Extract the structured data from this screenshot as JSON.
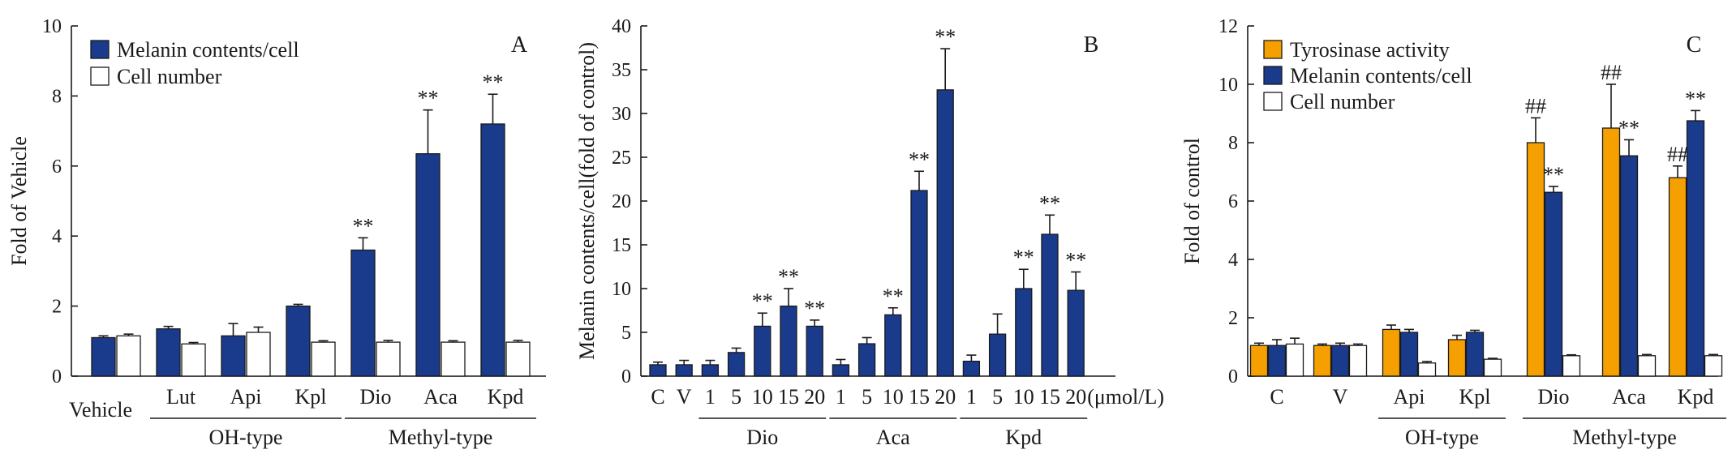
{
  "colors": {
    "melanin": "#1a3a8c",
    "cell": "#ffffff",
    "tyrosinase": "#f5a000",
    "ink": "#1a1a1a"
  },
  "chart_data": [
    {
      "type": "bar",
      "panel": "A",
      "ylabel": "Fold of  Vehicle",
      "ylim": [
        0,
        10
      ],
      "yticks": [
        0,
        2,
        4,
        6,
        8,
        10
      ],
      "categories": [
        "Vehicle",
        "Lut",
        "Api",
        "Kpl",
        "Dio",
        "Aca",
        "Kpd"
      ],
      "groups": [
        {
          "label": "OH-type",
          "categories": [
            "Lut",
            "Api",
            "Kpl"
          ]
        },
        {
          "label": "Methyl-type",
          "categories": [
            "Dio",
            "Aca",
            "Kpd"
          ]
        }
      ],
      "series": [
        {
          "name": "Melanin contents/cell",
          "color_key": "melanin",
          "values": [
            1.1,
            1.35,
            1.15,
            2.0,
            3.6,
            6.35,
            7.2
          ],
          "errors": [
            0.05,
            0.07,
            0.35,
            0.05,
            0.35,
            1.25,
            0.85
          ],
          "sig": [
            "",
            "",
            "",
            "",
            "**",
            "**",
            "**"
          ]
        },
        {
          "name": "Cell number",
          "color_key": "cell",
          "values": [
            1.15,
            0.92,
            1.25,
            0.97,
            0.97,
            0.97,
            0.97
          ],
          "errors": [
            0.05,
            0.04,
            0.15,
            0.04,
            0.05,
            0.04,
            0.05
          ],
          "sig": [
            "",
            "",
            "",
            "",
            "",
            "",
            ""
          ]
        }
      ]
    },
    {
      "type": "bar",
      "panel": "B",
      "ylabel": "Melanin contents/cell(fold of control)",
      "unit_label": "(μmol/L)",
      "ylim": [
        0,
        40
      ],
      "yticks": [
        0,
        5,
        10,
        15,
        20,
        25,
        30,
        35,
        40
      ],
      "categories": [
        "C",
        "V",
        "1",
        "5",
        "10",
        "15",
        "20",
        "1",
        "5",
        "10",
        "15",
        "20",
        "1",
        "5",
        "10",
        "15",
        "20"
      ],
      "groups": [
        {
          "label": "Dio",
          "start": 2,
          "end": 6
        },
        {
          "label": "Aca",
          "start": 7,
          "end": 11
        },
        {
          "label": "Kpd",
          "start": 12,
          "end": 16
        }
      ],
      "series": [
        {
          "name": "Melanin contents/cell",
          "color_key": "melanin",
          "values": [
            1.3,
            1.3,
            1.3,
            2.7,
            5.7,
            8.0,
            5.7,
            1.3,
            3.7,
            7.0,
            21.2,
            32.7,
            1.7,
            4.8,
            10.0,
            16.2,
            9.8
          ],
          "errors": [
            0.3,
            0.5,
            0.5,
            0.5,
            1.5,
            2.0,
            0.7,
            0.6,
            0.7,
            0.8,
            2.2,
            4.7,
            0.7,
            2.3,
            2.2,
            2.2,
            2.1
          ],
          "sig": [
            "",
            "",
            "",
            "",
            "**",
            "**",
            "**",
            "",
            "",
            "**",
            "**",
            "**",
            "",
            "",
            "**",
            "**",
            "**"
          ]
        }
      ]
    },
    {
      "type": "bar",
      "panel": "C",
      "ylabel": "Fold of  control",
      "ylim": [
        0,
        12
      ],
      "yticks": [
        0,
        2,
        4,
        6,
        8,
        10,
        12
      ],
      "categories": [
        "C",
        "V",
        "Api",
        "Kpl",
        "Dio",
        "Aca",
        "Kpd"
      ],
      "groups": [
        {
          "label": "OH-type",
          "categories": [
            "Api",
            "Kpl"
          ]
        },
        {
          "label": "Methyl-type",
          "categories": [
            "Dio",
            "Aca",
            "Kpd"
          ]
        }
      ],
      "series": [
        {
          "name": "Tyrosinase activity",
          "color_key": "tyrosinase",
          "values": [
            1.05,
            1.05,
            1.6,
            1.25,
            8.0,
            8.5,
            6.8
          ],
          "errors": [
            0.08,
            0.05,
            0.15,
            0.15,
            0.85,
            1.5,
            0.4
          ],
          "sig": [
            "",
            "",
            "",
            "",
            "##",
            "##",
            "##"
          ]
        },
        {
          "name": "Melanin contents/cell",
          "color_key": "melanin",
          "values": [
            1.05,
            1.05,
            1.5,
            1.5,
            6.3,
            7.55,
            8.75
          ],
          "errors": [
            0.2,
            0.08,
            0.1,
            0.07,
            0.2,
            0.55,
            0.35
          ],
          "sig": [
            "",
            "",
            "",
            "",
            "**",
            "**",
            "**"
          ]
        },
        {
          "name": "Cell number",
          "color_key": "cell",
          "values": [
            1.1,
            1.05,
            0.45,
            0.58,
            0.7,
            0.7,
            0.7
          ],
          "errors": [
            0.2,
            0.05,
            0.05,
            0.03,
            0.03,
            0.04,
            0.04
          ],
          "sig": [
            "",
            "",
            "",
            "",
            "",
            "",
            ""
          ]
        }
      ]
    }
  ]
}
